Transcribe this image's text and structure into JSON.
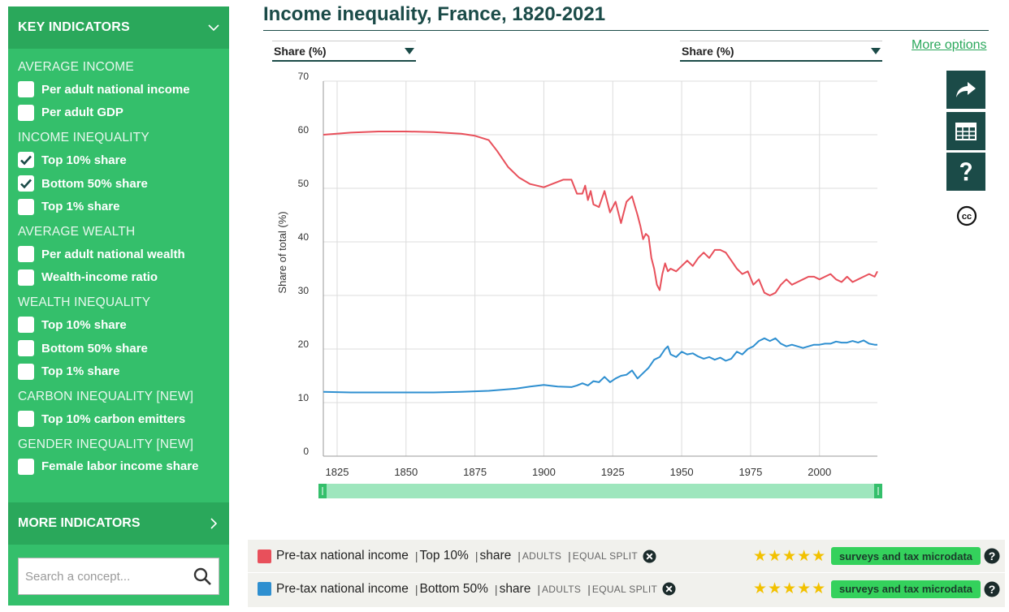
{
  "sidebar": {
    "header": "KEY INDICATORS",
    "sections": [
      {
        "title": "AVERAGE INCOME",
        "items": [
          {
            "label": "Per adult national income",
            "checked": false
          },
          {
            "label": "Per adult GDP",
            "checked": false
          }
        ]
      },
      {
        "title": "INCOME INEQUALITY",
        "items": [
          {
            "label": "Top 10% share",
            "checked": true
          },
          {
            "label": "Bottom 50% share",
            "checked": true
          },
          {
            "label": "Top 1% share",
            "checked": false
          }
        ]
      },
      {
        "title": "AVERAGE WEALTH",
        "items": [
          {
            "label": "Per adult national wealth",
            "checked": false
          },
          {
            "label": "Wealth-income ratio",
            "checked": false
          }
        ]
      },
      {
        "title": "WEALTH INEQUALITY",
        "items": [
          {
            "label": "Top 10% share",
            "checked": false
          },
          {
            "label": "Bottom 50% share",
            "checked": false
          },
          {
            "label": "Top 1% share",
            "checked": false
          }
        ]
      },
      {
        "title": "CARBON INEQUALITY [NEW]",
        "items": [
          {
            "label": "Top 10% carbon emitters",
            "checked": false
          }
        ]
      },
      {
        "title": "GENDER INEQUALITY [NEW]",
        "items": [
          {
            "label": "Female labor income share",
            "checked": false
          }
        ]
      }
    ],
    "more": "MORE INDICATORS",
    "search_placeholder": "Search a concept..."
  },
  "title": "Income inequality, France, 1820-2021",
  "selects": {
    "left": "Share (%)",
    "right": "Share (%)"
  },
  "more_options": "More options",
  "tools": [
    "share-icon",
    "table-icon",
    "help-icon",
    "creative-commons-icon"
  ],
  "chart_data": {
    "type": "line",
    "title": "Income inequality, France, 1820-2021",
    "ylabel": "Share of total (%)",
    "xlabel": "",
    "xlim": [
      1820,
      2021
    ],
    "ylim": [
      0,
      70
    ],
    "xticks": [
      1825,
      1850,
      1875,
      1900,
      1925,
      1950,
      1975,
      2000
    ],
    "yticks": [
      0,
      10,
      20,
      30,
      40,
      50,
      60,
      70
    ],
    "grid": true,
    "series": [
      {
        "name": "Pre-tax national income | Top 10% | share",
        "color": "#e8505b",
        "x": [
          1820,
          1830,
          1840,
          1850,
          1860,
          1870,
          1875,
          1880,
          1883,
          1887,
          1891,
          1895,
          1900,
          1903,
          1907,
          1910,
          1912,
          1914,
          1915,
          1916,
          1917,
          1918,
          1920,
          1922,
          1924,
          1926,
          1928,
          1929,
          1930,
          1932,
          1934,
          1935,
          1936,
          1937,
          1938,
          1939,
          1940,
          1941,
          1942,
          1943,
          1944,
          1945,
          1946,
          1948,
          1950,
          1952,
          1954,
          1956,
          1958,
          1960,
          1962,
          1964,
          1966,
          1968,
          1970,
          1972,
          1974,
          1976,
          1978,
          1980,
          1982,
          1984,
          1986,
          1988,
          1990,
          1992,
          1994,
          1996,
          1998,
          2000,
          2002,
          2004,
          2006,
          2008,
          2010,
          2012,
          2014,
          2016,
          2018,
          2020,
          2021
        ],
        "y": [
          60,
          60.4,
          60.6,
          60.6,
          60.5,
          60.2,
          59.8,
          59,
          57,
          54,
          52,
          50.8,
          50.2,
          50.8,
          51.6,
          51.6,
          49,
          49,
          50.5,
          47.8,
          49.5,
          47,
          46.5,
          49.5,
          45.5,
          47.5,
          43.5,
          45.5,
          47.5,
          48.5,
          45,
          43,
          40.5,
          41.5,
          41,
          37,
          35,
          32,
          31,
          34,
          36,
          34.5,
          35,
          34.5,
          35.5,
          36.5,
          35.5,
          37,
          38,
          37,
          38.5,
          38.5,
          38,
          36.5,
          35,
          34,
          34.5,
          32,
          33,
          30.5,
          30,
          30.5,
          32,
          33,
          32,
          32.5,
          33,
          33.5,
          33.5,
          33,
          33.5,
          34,
          33,
          32.5,
          33.5,
          32.5,
          33,
          33.5,
          34,
          33.5,
          34.5
        ]
      },
      {
        "name": "Pre-tax national income | Bottom 50% | share",
        "color": "#2e8fd0",
        "x": [
          1820,
          1830,
          1840,
          1850,
          1860,
          1870,
          1880,
          1890,
          1895,
          1900,
          1905,
          1910,
          1912,
          1914,
          1916,
          1918,
          1920,
          1922,
          1924,
          1926,
          1928,
          1930,
          1932,
          1934,
          1936,
          1938,
          1940,
          1942,
          1944,
          1945,
          1946,
          1948,
          1950,
          1952,
          1954,
          1956,
          1958,
          1960,
          1962,
          1964,
          1966,
          1968,
          1970,
          1972,
          1974,
          1976,
          1978,
          1980,
          1982,
          1984,
          1986,
          1988,
          1990,
          1992,
          1994,
          1996,
          1998,
          2000,
          2002,
          2004,
          2006,
          2008,
          2010,
          2012,
          2014,
          2016,
          2018,
          2020,
          2021
        ],
        "y": [
          12,
          11.9,
          11.9,
          11.9,
          11.9,
          12,
          12.2,
          12.6,
          13,
          13.3,
          13,
          12.9,
          13.2,
          13.6,
          13.2,
          14,
          13.8,
          14.8,
          13.8,
          14.5,
          15,
          15.2,
          16,
          14.5,
          15.5,
          16.5,
          18,
          18.5,
          20,
          20.5,
          19,
          18.5,
          19.5,
          19,
          19.2,
          18.6,
          18.2,
          18.5,
          18,
          18.4,
          17.8,
          18.2,
          19.5,
          19,
          20,
          20.5,
          21.5,
          22,
          21.5,
          22,
          21,
          20.5,
          20.8,
          20.5,
          20.2,
          20.5,
          20.8,
          20.8,
          21,
          21,
          21.4,
          21.2,
          21.2,
          21.5,
          21.2,
          21.6,
          21,
          20.8,
          20.8
        ]
      }
    ]
  },
  "legend": [
    {
      "color": "#e8505b",
      "name": "Pre-tax national income",
      "group": "Top 10%",
      "measure": "share",
      "pop": "ADULTS",
      "split": "EQUAL SPLIT",
      "stars": "★★★★★",
      "source": "surveys and tax microdata"
    },
    {
      "color": "#2e8fd0",
      "name": "Pre-tax national income",
      "group": "Bottom 50%",
      "measure": "share",
      "pop": "ADULTS",
      "split": "EQUAL SPLIT",
      "stars": "★★★★★",
      "source": "surveys and tax microdata"
    }
  ]
}
